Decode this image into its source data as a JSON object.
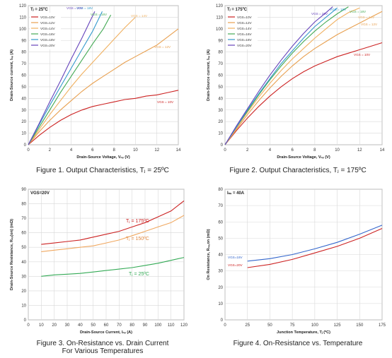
{
  "charts": [
    {
      "id": "fig1",
      "figure_caption": "Figure 1. Output Characteristics, T = 25ºC",
      "caption_lines": [
        "Figure 1. Output Characteristics, Tⱼ = 25ºC"
      ]
    }
  ],
  "chart_data": [
    {
      "type": "line",
      "title": "",
      "condition": "Tⱼ = 25ºC",
      "xlabel": "Drain-Source Voltage, Vₙₛ (V)",
      "ylabel": "Drain-Source current, Iₙₛ (A)",
      "xlim": [
        0,
        14
      ],
      "ylim": [
        0,
        120
      ],
      "xticks": [
        "0",
        "2",
        "4",
        "6",
        "8",
        "10",
        "12",
        "14"
      ],
      "yticks": [
        "0",
        "10",
        "20",
        "30",
        "40",
        "50",
        "60",
        "70",
        "80",
        "90",
        "100",
        "110",
        "120"
      ],
      "grid": true,
      "legend": "top-left",
      "legend_entries": [
        "VGS=10V",
        "VGS=12V",
        "VGS=14V",
        "VGS=16V",
        "VGS=18V",
        "VGS=20V"
      ],
      "annotations": [
        {
          "text": "VGS = 10V",
          "series": "VGS=10V"
        },
        {
          "text": "VGS = 12V",
          "series": "VGS=12V"
        },
        {
          "text": "VGS = 14V",
          "series": "VGS=14V"
        },
        {
          "text": "VGS = 16V",
          "series": "VGS=16V"
        },
        {
          "text": "VGS = 18V",
          "series": "VGS=18V"
        },
        {
          "text": "VGS = 20V",
          "series": "VGS=20V"
        }
      ],
      "series": [
        {
          "name": "VGS=10V",
          "color": "#cc2222",
          "x": [
            0,
            1,
            2,
            3,
            4,
            5,
            6,
            7,
            8,
            9,
            10,
            11,
            12,
            13,
            14
          ],
          "y": [
            0,
            8,
            15,
            21,
            26,
            30,
            33,
            35,
            37,
            39,
            40,
            42,
            43,
            45,
            47
          ]
        },
        {
          "name": "VGS=12V",
          "color": "#e8a050",
          "x": [
            0,
            1,
            2,
            3,
            4,
            5,
            6,
            7,
            8,
            9,
            10,
            11,
            12,
            13,
            14
          ],
          "y": [
            0,
            11,
            21,
            30,
            38,
            46,
            53,
            59,
            65,
            71,
            76,
            81,
            86,
            93,
            100
          ]
        },
        {
          "name": "VGS=14V",
          "color": "#f0b060",
          "x": [
            0,
            1,
            2,
            3,
            4,
            5,
            6,
            7,
            8,
            9,
            10
          ],
          "y": [
            0,
            13,
            26,
            38,
            50,
            61,
            71,
            81,
            91,
            101,
            110
          ]
        },
        {
          "name": "VGS=16V",
          "color": "#44aa55",
          "x": [
            0,
            1,
            2,
            3,
            4,
            5,
            6,
            7,
            7.7
          ],
          "y": [
            0,
            15,
            30,
            45,
            59,
            73,
            87,
            100,
            112
          ]
        },
        {
          "name": "VGS=18V",
          "color": "#3399cc",
          "x": [
            0,
            1,
            2,
            3,
            4,
            5,
            6,
            6.9
          ],
          "y": [
            0,
            17,
            34,
            50,
            66,
            82,
            98,
            115
          ]
        },
        {
          "name": "VGS=20V",
          "color": "#6644bb",
          "x": [
            0,
            1,
            2,
            3,
            4,
            5,
            6.2
          ],
          "y": [
            0,
            18,
            37,
            55,
            74,
            92,
            115
          ]
        }
      ],
      "caption": "Figure 1. Output Characteristics, Tⱼ = 25ºC"
    },
    {
      "type": "line",
      "title": "",
      "condition": "Tⱼ = 175ºC",
      "xlabel": "Drain-Source Voltage, Vₙₛ (V)",
      "ylabel": "Drain-Source current, Iₙₛ (A)",
      "xlim": [
        0,
        14
      ],
      "ylim": [
        0,
        120
      ],
      "xticks": [
        "0",
        "2",
        "4",
        "6",
        "8",
        "10",
        "12",
        "14"
      ],
      "yticks": [
        "0",
        "10",
        "20",
        "30",
        "40",
        "50",
        "60",
        "70",
        "80",
        "90",
        "100",
        "110",
        "120"
      ],
      "grid": true,
      "legend": "top-left",
      "legend_entries": [
        "VGS=10V",
        "VGS=12V",
        "VGS=14V",
        "VGS=16V",
        "VGS=18V",
        "VGS=20V"
      ],
      "annotations": [
        {
          "text": "VGS = 10V",
          "series": "VGS=10V"
        },
        {
          "text": "VGS = 12V",
          "series": "VGS=12V"
        },
        {
          "text": "VGS = 14V",
          "series": "VGS=14V"
        },
        {
          "text": "VGS = 16V",
          "series": "VGS=16V"
        },
        {
          "text": "VGS = 18V",
          "series": "VGS=18V"
        },
        {
          "text": "VGS = 20V",
          "series": "VGS=20V"
        }
      ],
      "series": [
        {
          "name": "VGS=10V",
          "color": "#cc2222",
          "x": [
            0,
            1,
            2,
            3,
            4,
            5,
            6,
            7,
            8,
            9,
            10,
            11,
            12,
            13,
            14
          ],
          "y": [
            0,
            12,
            23,
            33,
            42,
            50,
            57,
            63,
            68,
            72,
            76,
            79,
            82,
            85,
            88
          ]
        },
        {
          "name": "VGS=12V",
          "color": "#e8a050",
          "x": [
            0,
            1,
            2,
            3,
            4,
            5,
            6,
            7,
            8,
            9,
            10,
            11,
            12,
            13,
            14
          ],
          "y": [
            0,
            13,
            26,
            38,
            49,
            59,
            68,
            76,
            83,
            89,
            95,
            100,
            105,
            110,
            115
          ]
        },
        {
          "name": "VGS=14V",
          "color": "#f0b060",
          "x": [
            0,
            1,
            2,
            3,
            4,
            5,
            6,
            7,
            8,
            9,
            10,
            11,
            12
          ],
          "y": [
            0,
            14,
            28,
            41,
            53,
            64,
            74,
            83,
            92,
            100,
            108,
            114,
            118
          ]
        },
        {
          "name": "VGS=16V",
          "color": "#44aa55",
          "x": [
            0,
            1,
            2,
            3,
            4,
            5,
            6,
            7,
            8,
            9,
            10,
            11
          ],
          "y": [
            0,
            15,
            29,
            43,
            56,
            68,
            79,
            89,
            98,
            106,
            113,
            119
          ]
        },
        {
          "name": "VGS=18V",
          "color": "#3399cc",
          "x": [
            0,
            1,
            2,
            3,
            4,
            5,
            6,
            7,
            8,
            9,
            10
          ],
          "y": [
            0,
            15,
            30,
            44,
            57,
            70,
            81,
            92,
            102,
            110,
            118
          ]
        },
        {
          "name": "VGS=20V",
          "color": "#6644bb",
          "x": [
            0,
            1,
            2,
            3,
            4,
            5,
            6,
            7,
            8,
            9,
            9.6
          ],
          "y": [
            0,
            16,
            31,
            46,
            60,
            73,
            85,
            96,
            106,
            114,
            119
          ]
        }
      ],
      "caption": "Figure 2. Output Characteristics, Tⱼ = 175ºC"
    },
    {
      "type": "line",
      "title": "",
      "condition": "VGS=20V",
      "xlabel": "Drain-Source Current, Iₙₛ (A)",
      "ylabel": "Drain-Source Resistance, Rₙₛ(on) (mΩ)",
      "xlim": [
        0,
        120
      ],
      "ylim": [
        0,
        90
      ],
      "xticks": [
        "0",
        "10",
        "20",
        "30",
        "40",
        "50",
        "60",
        "70",
        "80",
        "90",
        "100",
        "110",
        "120"
      ],
      "yticks": [
        "0",
        "10",
        "20",
        "30",
        "40",
        "50",
        "60",
        "70",
        "80",
        "90"
      ],
      "grid": true,
      "annotations": [
        {
          "text": "Tⱼ = 175ºC",
          "series": "175C"
        },
        {
          "text": "Tⱼ = 150ºC",
          "series": "150C"
        },
        {
          "text": "Tⱼ = 25ºC",
          "series": "25C"
        }
      ],
      "series": [
        {
          "name": "175C",
          "color": "#cc2222",
          "x": [
            10,
            20,
            30,
            40,
            50,
            60,
            70,
            80,
            90,
            100,
            110,
            120
          ],
          "y": [
            52,
            53,
            54,
            55,
            57,
            59,
            61,
            64,
            67,
            71,
            75,
            82
          ]
        },
        {
          "name": "150C",
          "color": "#f0a860",
          "x": [
            10,
            20,
            30,
            40,
            50,
            60,
            70,
            80,
            90,
            100,
            110,
            120
          ],
          "y": [
            47,
            48,
            49,
            50,
            51,
            53,
            55,
            58,
            61,
            64,
            67,
            72
          ]
        },
        {
          "name": "25C",
          "color": "#33aa55",
          "x": [
            10,
            20,
            30,
            40,
            50,
            60,
            70,
            80,
            90,
            100,
            110,
            120
          ],
          "y": [
            30,
            31,
            31.5,
            32,
            33,
            34,
            35,
            36,
            37.5,
            39,
            41,
            43
          ]
        }
      ],
      "caption_lines": [
        "Figure 3. On-Resistance vs. Drain Current",
        "For Various Temperatures"
      ]
    },
    {
      "type": "line",
      "title": "",
      "condition": "Iₙₛ = 40A",
      "xlabel": "Junction Temperature, Tⱼ (ºC)",
      "ylabel": "On Resistance, Rₙₛ,on (mΩ)",
      "xlim": [
        0,
        175
      ],
      "ylim": [
        0,
        80
      ],
      "xticks": [
        "0",
        "25",
        "50",
        "75",
        "100",
        "125",
        "150",
        "175"
      ],
      "yticks": [
        "0",
        "10",
        "20",
        "30",
        "40",
        "50",
        "60",
        "70",
        "80"
      ],
      "grid": true,
      "annotations": [
        {
          "text": "VGS=18V",
          "series": "VGS=18V"
        },
        {
          "text": "VGS=20V",
          "series": "VGS=20V"
        }
      ],
      "series": [
        {
          "name": "VGS=18V",
          "color": "#3366cc",
          "x": [
            25,
            50,
            75,
            100,
            125,
            150,
            175
          ],
          "y": [
            36,
            37.5,
            40,
            43.5,
            47.5,
            52.5,
            58
          ]
        },
        {
          "name": "VGS=20V",
          "color": "#cc2222",
          "x": [
            25,
            50,
            75,
            100,
            125,
            150,
            175
          ],
          "y": [
            32,
            34,
            37,
            41,
            45,
            50,
            56
          ]
        }
      ],
      "caption": "Figure 4. On-Resistance vs. Temperature"
    }
  ]
}
